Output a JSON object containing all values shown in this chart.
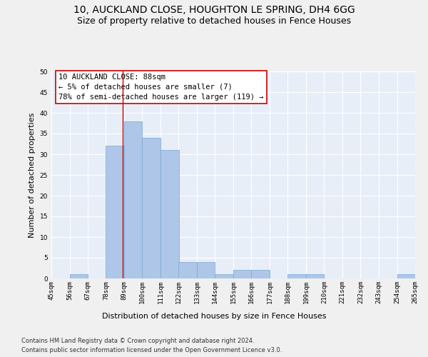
{
  "title1": "10, AUCKLAND CLOSE, HOUGHTON LE SPRING, DH4 6GG",
  "title2": "Size of property relative to detached houses in Fence Houses",
  "xlabel": "Distribution of detached houses by size in Fence Houses",
  "ylabel": "Number of detached properties",
  "footnote1": "Contains HM Land Registry data © Crown copyright and database right 2024.",
  "footnote2": "Contains public sector information licensed under the Open Government Licence v3.0.",
  "annotation_line1": "10 AUCKLAND CLOSE: 88sqm",
  "annotation_line2": "← 5% of detached houses are smaller (7)",
  "annotation_line3": "78% of semi-detached houses are larger (119) →",
  "bar_edges": [
    45,
    56,
    67,
    78,
    89,
    100,
    111,
    122,
    133,
    144,
    155,
    166,
    177,
    188,
    199,
    210,
    221,
    232,
    243,
    254,
    265
  ],
  "bar_heights": [
    0,
    1,
    0,
    32,
    38,
    34,
    31,
    4,
    4,
    1,
    2,
    2,
    0,
    1,
    1,
    0,
    0,
    0,
    0,
    1
  ],
  "bar_color": "#aec6e8",
  "bar_edgecolor": "#7aa8d4",
  "vline_color": "#cc0000",
  "vline_x": 88,
  "ylim": [
    0,
    50
  ],
  "yticks": [
    0,
    5,
    10,
    15,
    20,
    25,
    30,
    35,
    40,
    45,
    50
  ],
  "tick_labels": [
    "45sqm",
    "56sqm",
    "67sqm",
    "78sqm",
    "89sqm",
    "100sqm",
    "111sqm",
    "122sqm",
    "133sqm",
    "144sqm",
    "155sqm",
    "166sqm",
    "177sqm",
    "188sqm",
    "199sqm",
    "210sqm",
    "221sqm",
    "232sqm",
    "243sqm",
    "254sqm",
    "265sqm"
  ],
  "annotation_box_color": "#cc0000",
  "background_color": "#e8eef8",
  "grid_color": "#ffffff",
  "fig_facecolor": "#f0f0f0",
  "title_fontsize": 10,
  "subtitle_fontsize": 9,
  "annotation_fontsize": 7.5,
  "axis_label_fontsize": 8,
  "ylabel_full": "Number of detached properties",
  "tick_fontsize": 6.5,
  "footnote_fontsize": 6
}
